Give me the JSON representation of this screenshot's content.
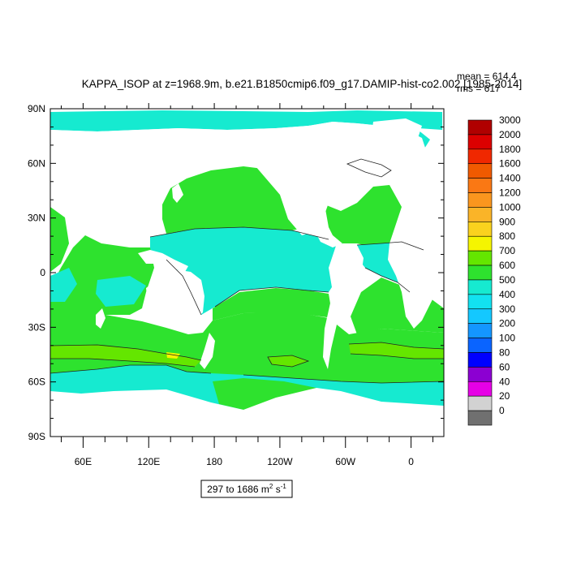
{
  "title": "KAPPA_ISOP at z=1968.9m, b.e21.B1850cmip6.f09_g17.DAMIP-hist-co2.002 [1985-2014]",
  "stats": {
    "mean_label": "mean = 614.4",
    "rms_label": "rms = 617"
  },
  "range_label": {
    "prefix": "297 to 1686 m",
    "sup1": "2",
    "mid": " s",
    "sup2": "-1"
  },
  "map": {
    "lat_ticks": [
      "90N",
      "60N",
      "30N",
      "0",
      "30S",
      "60S",
      "90S"
    ],
    "lon_ticks": [
      "60E",
      "120E",
      "180",
      "120W",
      "60W",
      "0"
    ],
    "colors": {
      "land": "#ffffff",
      "ocean_main": "#2ee22e",
      "ocean_band": "#16ead0",
      "ice_gray": "#c8c8c8",
      "contour": "#222222"
    }
  },
  "legend": {
    "labels": [
      "3000",
      "2000",
      "1800",
      "1600",
      "1400",
      "1200",
      "1000",
      "900",
      "800",
      "700",
      "600",
      "500",
      "400",
      "300",
      "200",
      "100",
      "80",
      "60",
      "40",
      "20",
      "0"
    ],
    "colors": [
      "#b00000",
      "#dc0000",
      "#f02800",
      "#f05a00",
      "#fa7814",
      "#fa961e",
      "#fab428",
      "#fad21e",
      "#f5f500",
      "#64e600",
      "#2ee22e",
      "#16ead0",
      "#12e2f0",
      "#14c8ff",
      "#1496ff",
      "#0a64ff",
      "#0000ff",
      "#8c00d2",
      "#e600e6",
      "#d2d2d2",
      "#707070"
    ]
  }
}
